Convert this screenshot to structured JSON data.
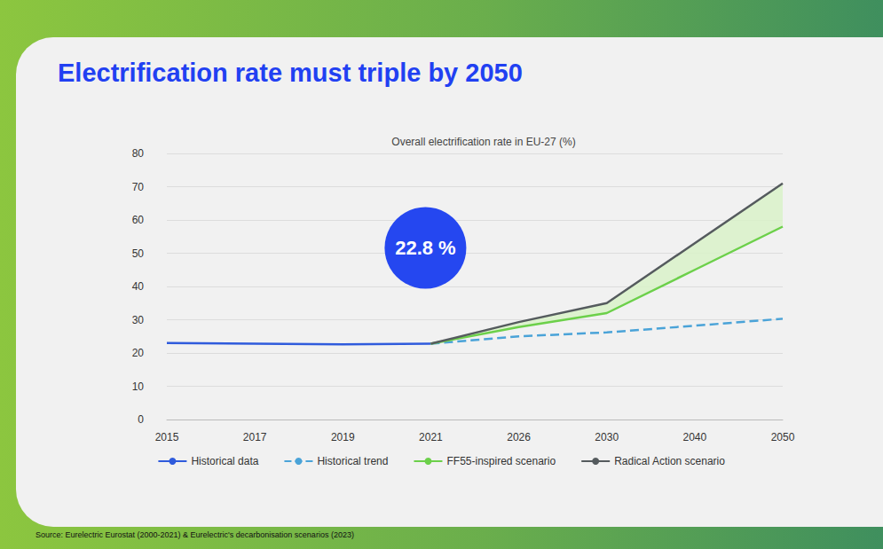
{
  "chart_data": {
    "type": "line",
    "title": "Electrification rate must triple by 2050",
    "subtitle": "Overall electrification rate in EU-27 (%)",
    "source": "Source: Eurelectric Eurostat (2000-2021) & Eurelectric's decarbonisation scenarios (2023)",
    "annotation": {
      "text": "22.8 %",
      "category": "2021",
      "value": 22.8
    },
    "categories": [
      "2015",
      "2017",
      "2019",
      "2021",
      "2026",
      "2030",
      "2040",
      "2050"
    ],
    "series": [
      {
        "name": "Historical data",
        "color": "#2f5bdc",
        "line_style": "solid",
        "values": [
          23.0,
          22.8,
          22.6,
          22.8,
          null,
          null,
          null,
          null
        ]
      },
      {
        "name": "Historical trend",
        "color": "#4aa3d8",
        "line_style": "dashed",
        "values": [
          null,
          null,
          null,
          22.8,
          25.0,
          26.2,
          28.2,
          30.3
        ]
      },
      {
        "name": "FF55-inspired scenario",
        "color": "#6cd04a",
        "line_style": "solid",
        "values": [
          null,
          null,
          null,
          22.8,
          27.8,
          32.0,
          45.0,
          58.0
        ]
      },
      {
        "name": "Radical Action scenario",
        "color": "#555b5e",
        "line_style": "solid",
        "values": [
          null,
          null,
          null,
          22.8,
          29.3,
          35.0,
          53.0,
          71.0
        ]
      }
    ],
    "ylim": [
      0,
      80
    ],
    "yticks": [
      0,
      10,
      20,
      30,
      40,
      50,
      60,
      70,
      80
    ],
    "grid": true,
    "legend": "bottom"
  }
}
